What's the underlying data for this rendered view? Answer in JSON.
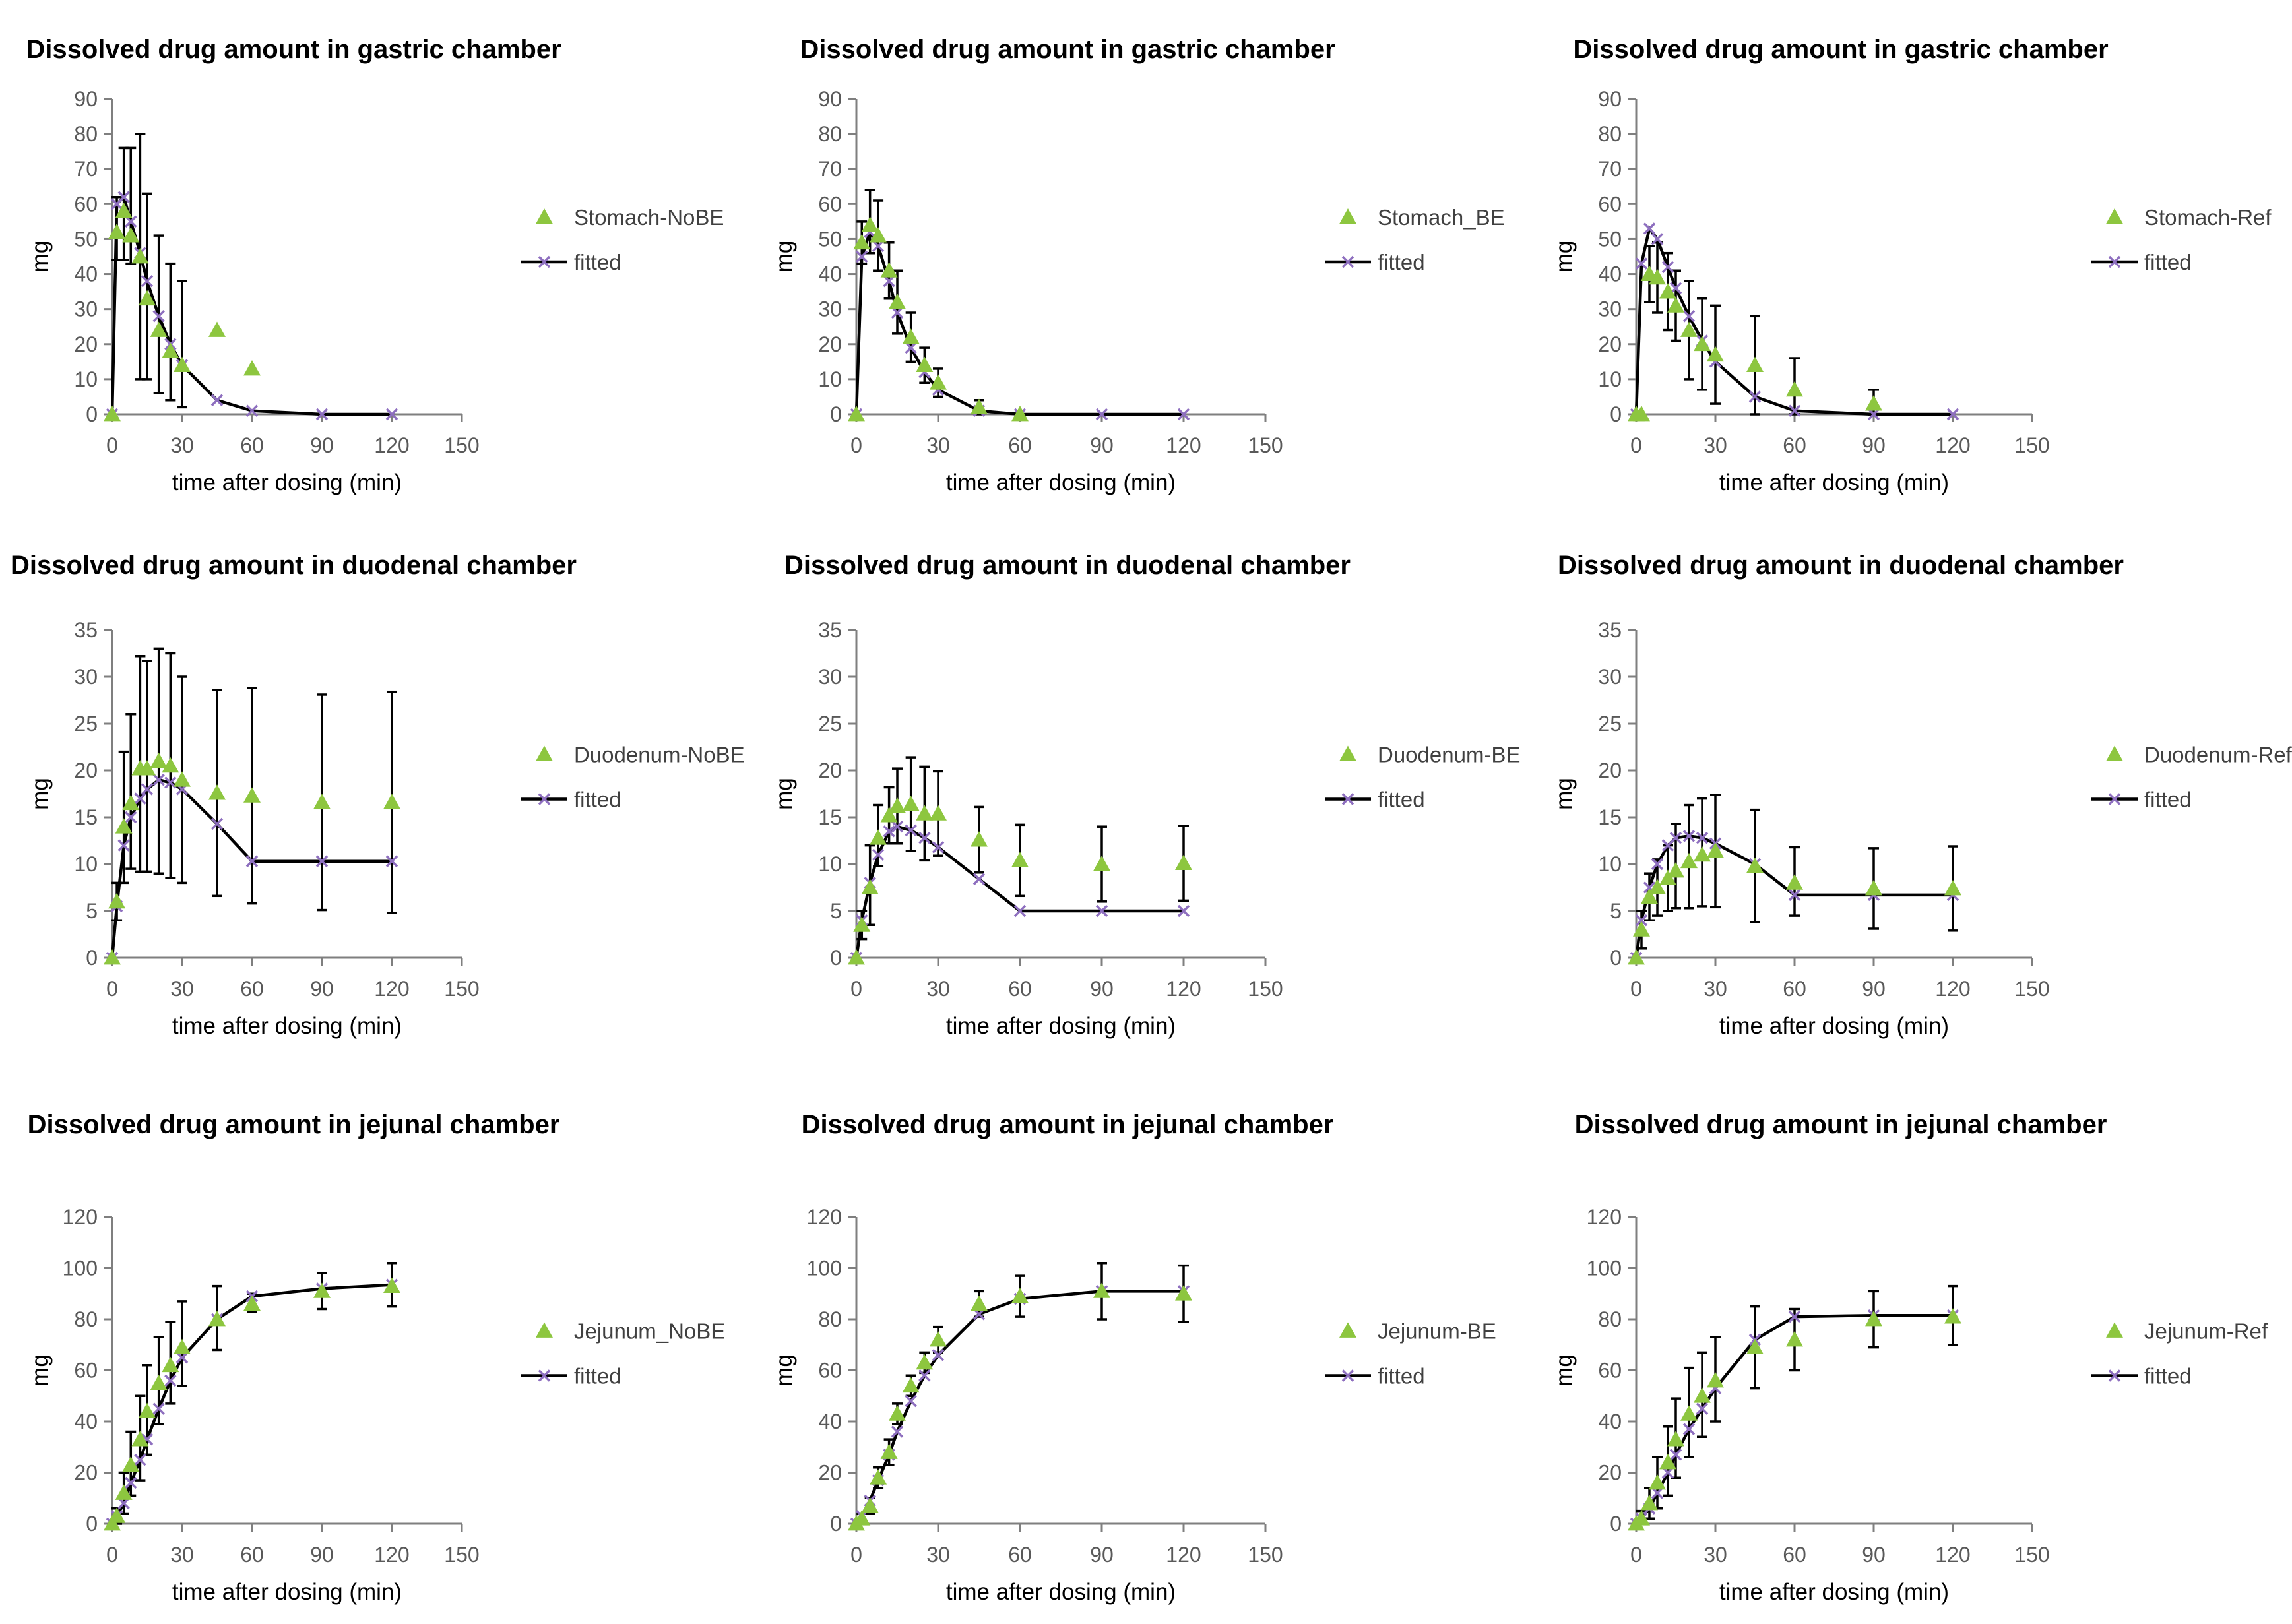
{
  "figure": {
    "colors": {
      "observed": "#8DC63F",
      "fitted_line": "#000000",
      "fitted_marker": "#8E6FBF",
      "axis": "#7F7F7F",
      "text": "#404040"
    }
  },
  "chart_data": [
    {
      "type": "scatter",
      "title": "Dissolved drug amount in gastric chamber",
      "xlabel": "time after dosing (min)",
      "ylabel": "mg",
      "xlim": [
        0,
        150
      ],
      "ylim": [
        0,
        90
      ],
      "xticks": [
        0,
        30,
        60,
        90,
        120,
        150
      ],
      "yticks": [
        0,
        10,
        20,
        30,
        40,
        50,
        60,
        70,
        80,
        90
      ],
      "series": [
        {
          "name": "Stomach-NoBE",
          "kind": "observed",
          "x": [
            0,
            2,
            5,
            8,
            12,
            15,
            20,
            25,
            30,
            45,
            60
          ],
          "y": [
            0,
            52,
            58,
            51,
            45,
            33,
            24,
            18,
            14,
            24,
            13
          ],
          "err_high": [
            0,
            10,
            18,
            25,
            35,
            30,
            27,
            25,
            24,
            0,
            0
          ],
          "err_low": [
            0,
            8,
            14,
            8,
            35,
            23,
            18,
            14,
            12,
            0,
            0
          ]
        },
        {
          "name": "fitted",
          "kind": "fitted",
          "x": [
            0,
            2,
            5,
            8,
            12,
            15,
            20,
            25,
            30,
            45,
            60,
            90,
            120
          ],
          "y": [
            0,
            60,
            62,
            55,
            46,
            38,
            28,
            20,
            14,
            4,
            1,
            0,
            0
          ]
        }
      ]
    },
    {
      "type": "scatter",
      "title": "Dissolved drug amount in gastric chamber",
      "xlabel": "time after dosing (min)",
      "ylabel": "mg",
      "xlim": [
        0,
        150
      ],
      "ylim": [
        0,
        90
      ],
      "xticks": [
        0,
        30,
        60,
        90,
        120,
        150
      ],
      "yticks": [
        0,
        10,
        20,
        30,
        40,
        50,
        60,
        70,
        80,
        90
      ],
      "series": [
        {
          "name": "Stomach_BE",
          "kind": "observed",
          "x": [
            0,
            2,
            5,
            8,
            12,
            15,
            20,
            25,
            30,
            45,
            60
          ],
          "y": [
            0,
            49,
            54,
            51,
            41,
            32,
            22,
            14,
            9,
            2,
            0
          ],
          "err_high": [
            0,
            6,
            10,
            10,
            8,
            9,
            7,
            5,
            4,
            2,
            0
          ],
          "err_low": [
            0,
            6,
            8,
            10,
            8,
            9,
            7,
            5,
            4,
            2,
            0
          ]
        },
        {
          "name": "fitted",
          "kind": "fitted",
          "x": [
            0,
            2,
            5,
            8,
            12,
            15,
            20,
            25,
            30,
            45,
            60,
            90,
            120
          ],
          "y": [
            0,
            45,
            52,
            48,
            38,
            29,
            19,
            12,
            7,
            1,
            0,
            0,
            0
          ]
        }
      ]
    },
    {
      "type": "scatter",
      "title": "Dissolved drug amount in gastric chamber",
      "xlabel": "time after dosing (min)",
      "ylabel": "mg",
      "xlim": [
        0,
        150
      ],
      "ylim": [
        0,
        90
      ],
      "xticks": [
        0,
        30,
        60,
        90,
        120,
        150
      ],
      "yticks": [
        0,
        10,
        20,
        30,
        40,
        50,
        60,
        70,
        80,
        90
      ],
      "series": [
        {
          "name": "Stomach-Ref",
          "kind": "observed",
          "x": [
            0,
            2,
            5,
            8,
            12,
            15,
            20,
            25,
            30,
            45,
            60,
            90
          ],
          "y": [
            0,
            0,
            40,
            39,
            35,
            31,
            24,
            20,
            17,
            14,
            7,
            3
          ],
          "err_high": [
            0,
            0,
            8,
            10,
            11,
            10,
            14,
            13,
            14,
            14,
            9,
            4
          ],
          "err_low": [
            0,
            0,
            8,
            10,
            11,
            10,
            14,
            13,
            14,
            14,
            7,
            3
          ]
        },
        {
          "name": "fitted",
          "kind": "fitted",
          "x": [
            0,
            2,
            5,
            8,
            12,
            15,
            20,
            25,
            30,
            45,
            60,
            90,
            120
          ],
          "y": [
            0,
            43,
            53,
            50,
            42,
            36,
            28,
            21,
            15,
            5,
            1,
            0,
            0
          ]
        }
      ]
    },
    {
      "type": "scatter",
      "title": "Dissolved drug amount in duodenal chamber",
      "xlabel": "time after dosing (min)",
      "ylabel": "mg",
      "xlim": [
        0,
        150
      ],
      "ylim": [
        0,
        35
      ],
      "xticks": [
        0,
        30,
        60,
        90,
        120,
        150
      ],
      "yticks": [
        0,
        5,
        10,
        15,
        20,
        25,
        30,
        35
      ],
      "series": [
        {
          "name": "Duodenum-NoBE",
          "kind": "observed",
          "x": [
            0,
            2,
            5,
            8,
            12,
            15,
            20,
            25,
            30,
            45,
            60,
            90,
            120
          ],
          "y": [
            0,
            6,
            14,
            16.5,
            20.2,
            20.2,
            21,
            20.5,
            19,
            17.6,
            17.3,
            16.6,
            16.6
          ],
          "err_high": [
            0,
            2,
            8,
            9.5,
            12,
            11.5,
            12,
            12,
            11,
            11,
            11.5,
            11.5,
            11.8
          ],
          "err_low": [
            0,
            2,
            6,
            7,
            11,
            11,
            12,
            12,
            11,
            11,
            11.5,
            11.5,
            11.8
          ]
        },
        {
          "name": "fitted",
          "kind": "fitted",
          "x": [
            0,
            2,
            5,
            8,
            12,
            15,
            20,
            25,
            30,
            45,
            60,
            90,
            120
          ],
          "y": [
            0,
            5.5,
            12,
            15,
            17,
            18,
            19,
            18.7,
            18,
            14.3,
            10.3,
            10.3,
            10.3
          ]
        }
      ]
    },
    {
      "type": "scatter",
      "title": "Dissolved drug amount in duodenal chamber",
      "xlabel": "time after dosing (min)",
      "ylabel": "mg",
      "xlim": [
        0,
        150
      ],
      "ylim": [
        0,
        35
      ],
      "xticks": [
        0,
        30,
        60,
        90,
        120,
        150
      ],
      "yticks": [
        0,
        5,
        10,
        15,
        20,
        25,
        30,
        35
      ],
      "series": [
        {
          "name": "Duodenum-BE",
          "kind": "observed",
          "x": [
            0,
            2,
            5,
            8,
            12,
            15,
            20,
            25,
            30,
            45,
            60,
            90,
            120
          ],
          "y": [
            0,
            3.5,
            7.5,
            12.8,
            15.2,
            16.2,
            16.4,
            15.4,
            15.4,
            12.6,
            10.4,
            10,
            10.1
          ],
          "err_high": [
            0,
            1.5,
            4.5,
            3.5,
            3,
            4,
            5,
            5,
            4.5,
            3.5,
            3.8,
            4,
            4
          ],
          "err_low": [
            0,
            1.5,
            4,
            3,
            3,
            4,
            5,
            5,
            4.5,
            3.5,
            3.8,
            4,
            4
          ]
        },
        {
          "name": "fitted",
          "kind": "fitted",
          "x": [
            0,
            2,
            5,
            8,
            12,
            15,
            20,
            25,
            30,
            45,
            60,
            90,
            120
          ],
          "y": [
            0,
            4,
            8,
            11,
            13.5,
            14,
            13.6,
            12.8,
            11.8,
            8.4,
            5,
            5,
            5
          ]
        }
      ]
    },
    {
      "type": "scatter",
      "title": "Dissolved drug amount in duodenal chamber",
      "xlabel": "time after dosing (min)",
      "ylabel": "mg",
      "xlim": [
        0,
        150
      ],
      "ylim": [
        0,
        35
      ],
      "xticks": [
        0,
        30,
        60,
        90,
        120,
        150
      ],
      "yticks": [
        0,
        5,
        10,
        15,
        20,
        25,
        30,
        35
      ],
      "series": [
        {
          "name": "Duodenum-Ref",
          "kind": "observed",
          "x": [
            0,
            2,
            5,
            8,
            12,
            15,
            20,
            25,
            30,
            45,
            60,
            90,
            120
          ],
          "y": [
            0,
            3,
            6.5,
            7.5,
            8.5,
            9.3,
            10.3,
            11,
            11.4,
            9.8,
            8,
            7.4,
            7.4
          ],
          "err_high": [
            0,
            2,
            2.5,
            3,
            3.5,
            5,
            6,
            6,
            6,
            6,
            3.8,
            4.3,
            4.5
          ],
          "err_low": [
            0,
            2,
            2.5,
            3,
            3.5,
            4,
            5,
            5.5,
            6,
            6,
            3.5,
            4.3,
            4.5
          ]
        },
        {
          "name": "fitted",
          "kind": "fitted",
          "x": [
            0,
            2,
            5,
            8,
            12,
            15,
            20,
            25,
            30,
            45,
            60,
            90,
            120
          ],
          "y": [
            0,
            4,
            7.5,
            10,
            12,
            12.8,
            13,
            12.8,
            12.2,
            10,
            6.7,
            6.7,
            6.7
          ]
        }
      ]
    },
    {
      "type": "scatter",
      "title": "Dissolved drug amount in jejunal chamber",
      "xlabel": "time after dosing (min)",
      "ylabel": "mg",
      "xlim": [
        0,
        150
      ],
      "ylim": [
        0,
        120
      ],
      "xticks": [
        0,
        30,
        60,
        90,
        120,
        150
      ],
      "yticks": [
        0,
        20,
        40,
        60,
        80,
        100,
        120
      ],
      "series": [
        {
          "name": "Jejunum_NoBE",
          "kind": "observed",
          "x": [
            0,
            2,
            5,
            8,
            12,
            15,
            20,
            25,
            30,
            45,
            60,
            90,
            120
          ],
          "y": [
            0,
            3,
            12,
            23,
            33,
            44,
            55,
            62,
            69,
            80,
            86,
            91,
            93
          ],
          "err_high": [
            0,
            3,
            8,
            13,
            17,
            18,
            18,
            17,
            18,
            13,
            4,
            7,
            9
          ],
          "err_low": [
            0,
            3,
            8,
            12,
            16,
            17,
            16,
            15,
            15,
            12,
            3,
            7,
            8
          ]
        },
        {
          "name": "fitted",
          "kind": "fitted",
          "x": [
            0,
            2,
            5,
            8,
            12,
            15,
            20,
            25,
            30,
            45,
            60,
            90,
            120
          ],
          "y": [
            0,
            3,
            8,
            16,
            25,
            33,
            45,
            56,
            65,
            80,
            89,
            92,
            93.5
          ]
        }
      ]
    },
    {
      "type": "scatter",
      "title": "Dissolved drug amount in jejunal chamber",
      "xlabel": "time after dosing (min)",
      "ylabel": "mg",
      "xlim": [
        0,
        150
      ],
      "ylim": [
        0,
        120
      ],
      "xticks": [
        0,
        30,
        60,
        90,
        120,
        150
      ],
      "yticks": [
        0,
        20,
        40,
        60,
        80,
        100,
        120
      ],
      "series": [
        {
          "name": "Jejunum-BE",
          "kind": "observed",
          "x": [
            0,
            2,
            5,
            8,
            12,
            15,
            20,
            25,
            30,
            45,
            60,
            90,
            120
          ],
          "y": [
            0,
            2,
            7,
            18,
            28,
            43,
            54,
            63,
            72,
            86,
            89,
            91,
            90
          ],
          "err_high": [
            0,
            2,
            3,
            4,
            5,
            4,
            4,
            4,
            5,
            5,
            8,
            11,
            11
          ],
          "err_low": [
            0,
            2,
            3,
            4,
            5,
            4,
            4,
            4,
            5,
            5,
            8,
            11,
            11
          ]
        },
        {
          "name": "fitted",
          "kind": "fitted",
          "x": [
            0,
            2,
            5,
            8,
            12,
            15,
            20,
            25,
            30,
            45,
            60,
            90,
            120
          ],
          "y": [
            0,
            3,
            9,
            17,
            27,
            36,
            48,
            58,
            66,
            82,
            88,
            91,
            91
          ]
        }
      ]
    },
    {
      "type": "scatter",
      "title": "Dissolved drug amount in jejunal chamber",
      "xlabel": "time after dosing (min)",
      "ylabel": "mg",
      "xlim": [
        0,
        150
      ],
      "ylim": [
        0,
        120
      ],
      "xticks": [
        0,
        30,
        60,
        90,
        120,
        150
      ],
      "yticks": [
        0,
        20,
        40,
        60,
        80,
        100,
        120
      ],
      "series": [
        {
          "name": "Jejunum-Ref",
          "kind": "observed",
          "x": [
            0,
            2,
            5,
            8,
            12,
            15,
            20,
            25,
            30,
            45,
            60,
            90,
            120
          ],
          "y": [
            0,
            2,
            8,
            16,
            24,
            33,
            43,
            50,
            56,
            69,
            72,
            80,
            81
          ],
          "err_high": [
            0,
            3,
            6,
            10,
            14,
            16,
            18,
            17,
            17,
            16,
            12,
            11,
            12
          ],
          "err_low": [
            0,
            2,
            6,
            10,
            13,
            15,
            17,
            16,
            16,
            16,
            12,
            11,
            11
          ]
        },
        {
          "name": "fitted",
          "kind": "fitted",
          "x": [
            0,
            2,
            5,
            8,
            12,
            15,
            20,
            25,
            30,
            45,
            60,
            90,
            120
          ],
          "y": [
            0,
            2,
            6,
            12,
            20,
            27,
            37,
            45,
            53,
            72,
            81,
            81.5,
            81.5
          ]
        }
      ]
    }
  ]
}
